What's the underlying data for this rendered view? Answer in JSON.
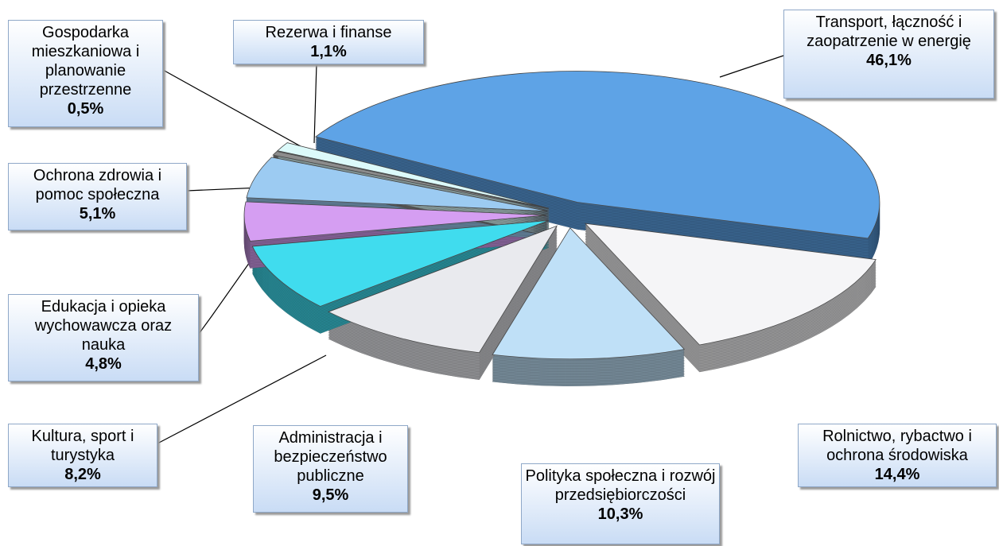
{
  "chart_data": {
    "type": "pie",
    "categories": [
      "Transport, łączność i zaopatrzenie w energię",
      "Rolnictwo, rybactwo i ochrona środowiska",
      "Polityka społeczna i rozwój przedsiębiorczości",
      "Administracja i bezpieczeństwo publiczne",
      "Kultura, sport i turystyka",
      "Edukacja i opieka wychowawcza oraz nauka",
      "Ochrona zdrowia i pomoc społeczna",
      "Gospodarka mieszkaniowa i planowanie przestrzenne",
      "Rezerwa i finanse"
    ],
    "values": [
      46.1,
      14.4,
      10.3,
      9.5,
      8.2,
      4.8,
      5.1,
      0.5,
      1.1
    ],
    "value_labels": [
      "46,1%",
      "14,4%",
      "10,3%",
      "9,5%",
      "8,2%",
      "4,8%",
      "5,1%",
      "0,5%",
      "1,1%"
    ],
    "colors": [
      "#5ea3e6",
      "#f5f5f7",
      "#bfe0f7",
      "#e9eaee",
      "#40dcee",
      "#d59ef2",
      "#9ccbf2",
      "#8c8c8c",
      "#dcfafa"
    ]
  }
}
